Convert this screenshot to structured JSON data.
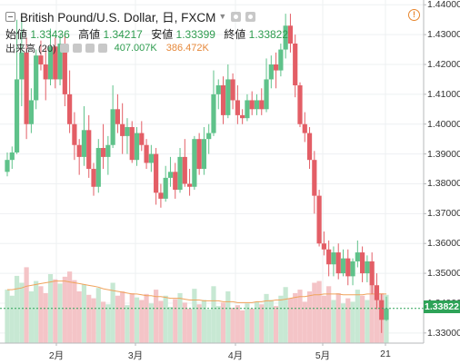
{
  "header": {
    "symbol_title": "British Pound/U.S. Dollar, 日, FXCM",
    "open_label": "始値",
    "open_value": "1.33436",
    "high_label": "高値",
    "high_value": "1.34217",
    "low_label": "安値",
    "low_value": "1.33399",
    "close_label": "終値",
    "close_value": "1.33822",
    "volume_study": "出来高 (20)",
    "volume_value": "407.007K",
    "volume_ma_value": "386.472K",
    "alert_glyph": "!"
  },
  "price_tag": "1.33822",
  "colors": {
    "up": "#5fc28a",
    "down": "#e35e66",
    "ma": "#f0a35c",
    "price_tag": "#2ea358"
  },
  "chart_data": {
    "type": "candlestick",
    "title": "British Pound/U.S. Dollar, 日, FXCM",
    "y_ticks": [
      "1.33000",
      "1.34000",
      "1.35000",
      "1.36000",
      "1.37000",
      "1.38000",
      "1.39000",
      "1.40000",
      "1.41000",
      "1.42000",
      "1.43000",
      "1.44000"
    ],
    "ylim": [
      1.3266,
      1.4416
    ],
    "x_ticks": [
      "2月",
      "3月",
      "4月",
      "5月",
      "21"
    ],
    "grid": true,
    "candles": [
      {
        "o": 1.384,
        "h": 1.3905,
        "l": 1.3825,
        "c": 1.388
      },
      {
        "o": 1.388,
        "h": 1.3925,
        "l": 1.385,
        "c": 1.3905
      },
      {
        "o": 1.3905,
        "h": 1.435,
        "l": 1.39,
        "c": 1.415
      },
      {
        "o": 1.415,
        "h": 1.436,
        "l": 1.406,
        "c": 1.424
      },
      {
        "o": 1.424,
        "h": 1.429,
        "l": 1.395,
        "c": 1.4
      },
      {
        "o": 1.4,
        "h": 1.412,
        "l": 1.397,
        "c": 1.408
      },
      {
        "o": 1.408,
        "h": 1.425,
        "l": 1.405,
        "c": 1.423
      },
      {
        "o": 1.423,
        "h": 1.428,
        "l": 1.418,
        "c": 1.42
      },
      {
        "o": 1.42,
        "h": 1.426,
        "l": 1.408,
        "c": 1.415
      },
      {
        "o": 1.415,
        "h": 1.432,
        "l": 1.413,
        "c": 1.426
      },
      {
        "o": 1.426,
        "h": 1.429,
        "l": 1.412,
        "c": 1.415
      },
      {
        "o": 1.415,
        "h": 1.43,
        "l": 1.413,
        "c": 1.427
      },
      {
        "o": 1.427,
        "h": 1.43,
        "l": 1.406,
        "c": 1.41
      },
      {
        "o": 1.41,
        "h": 1.418,
        "l": 1.397,
        "c": 1.4
      },
      {
        "o": 1.4,
        "h": 1.404,
        "l": 1.388,
        "c": 1.393
      },
      {
        "o": 1.393,
        "h": 1.395,
        "l": 1.383,
        "c": 1.389
      },
      {
        "o": 1.389,
        "h": 1.406,
        "l": 1.386,
        "c": 1.398
      },
      {
        "o": 1.398,
        "h": 1.403,
        "l": 1.382,
        "c": 1.385
      },
      {
        "o": 1.385,
        "h": 1.387,
        "l": 1.376,
        "c": 1.379
      },
      {
        "o": 1.379,
        "h": 1.395,
        "l": 1.377,
        "c": 1.392
      },
      {
        "o": 1.392,
        "h": 1.4,
        "l": 1.385,
        "c": 1.389
      },
      {
        "o": 1.389,
        "h": 1.396,
        "l": 1.383,
        "c": 1.393
      },
      {
        "o": 1.393,
        "h": 1.413,
        "l": 1.392,
        "c": 1.405
      },
      {
        "o": 1.405,
        "h": 1.41,
        "l": 1.397,
        "c": 1.4
      },
      {
        "o": 1.4,
        "h": 1.407,
        "l": 1.39,
        "c": 1.396
      },
      {
        "o": 1.396,
        "h": 1.402,
        "l": 1.39,
        "c": 1.399
      },
      {
        "o": 1.399,
        "h": 1.401,
        "l": 1.387,
        "c": 1.388
      },
      {
        "o": 1.388,
        "h": 1.399,
        "l": 1.386,
        "c": 1.397
      },
      {
        "o": 1.397,
        "h": 1.401,
        "l": 1.391,
        "c": 1.393
      },
      {
        "o": 1.393,
        "h": 1.395,
        "l": 1.385,
        "c": 1.387
      },
      {
        "o": 1.387,
        "h": 1.393,
        "l": 1.384,
        "c": 1.39
      },
      {
        "o": 1.39,
        "h": 1.392,
        "l": 1.373,
        "c": 1.377
      },
      {
        "o": 1.377,
        "h": 1.38,
        "l": 1.372,
        "c": 1.375
      },
      {
        "o": 1.375,
        "h": 1.386,
        "l": 1.374,
        "c": 1.382
      },
      {
        "o": 1.382,
        "h": 1.389,
        "l": 1.379,
        "c": 1.384
      },
      {
        "o": 1.384,
        "h": 1.387,
        "l": 1.375,
        "c": 1.378
      },
      {
        "o": 1.378,
        "h": 1.392,
        "l": 1.377,
        "c": 1.389
      },
      {
        "o": 1.389,
        "h": 1.395,
        "l": 1.379,
        "c": 1.38
      },
      {
        "o": 1.38,
        "h": 1.385,
        "l": 1.376,
        "c": 1.379
      },
      {
        "o": 1.379,
        "h": 1.396,
        "l": 1.378,
        "c": 1.395
      },
      {
        "o": 1.395,
        "h": 1.397,
        "l": 1.383,
        "c": 1.385
      },
      {
        "o": 1.385,
        "h": 1.399,
        "l": 1.383,
        "c": 1.395
      },
      {
        "o": 1.395,
        "h": 1.4,
        "l": 1.39,
        "c": 1.397
      },
      {
        "o": 1.397,
        "h": 1.418,
        "l": 1.396,
        "c": 1.41
      },
      {
        "o": 1.41,
        "h": 1.415,
        "l": 1.405,
        "c": 1.413
      },
      {
        "o": 1.413,
        "h": 1.416,
        "l": 1.4,
        "c": 1.403
      },
      {
        "o": 1.403,
        "h": 1.42,
        "l": 1.402,
        "c": 1.415
      },
      {
        "o": 1.415,
        "h": 1.417,
        "l": 1.405,
        "c": 1.408
      },
      {
        "o": 1.408,
        "h": 1.413,
        "l": 1.4,
        "c": 1.403
      },
      {
        "o": 1.403,
        "h": 1.405,
        "l": 1.4,
        "c": 1.402
      },
      {
        "o": 1.402,
        "h": 1.41,
        "l": 1.401,
        "c": 1.408
      },
      {
        "o": 1.408,
        "h": 1.411,
        "l": 1.403,
        "c": 1.405
      },
      {
        "o": 1.405,
        "h": 1.41,
        "l": 1.403,
        "c": 1.408
      },
      {
        "o": 1.408,
        "h": 1.412,
        "l": 1.403,
        "c": 1.405
      },
      {
        "o": 1.405,
        "h": 1.422,
        "l": 1.404,
        "c": 1.415
      },
      {
        "o": 1.415,
        "h": 1.423,
        "l": 1.412,
        "c": 1.42
      },
      {
        "o": 1.42,
        "h": 1.424,
        "l": 1.412,
        "c": 1.418
      },
      {
        "o": 1.418,
        "h": 1.427,
        "l": 1.416,
        "c": 1.425
      },
      {
        "o": 1.425,
        "h": 1.437,
        "l": 1.422,
        "c": 1.433
      },
      {
        "o": 1.433,
        "h": 1.437,
        "l": 1.424,
        "c": 1.427
      },
      {
        "o": 1.427,
        "h": 1.43,
        "l": 1.409,
        "c": 1.413
      },
      {
        "o": 1.413,
        "h": 1.414,
        "l": 1.399,
        "c": 1.4
      },
      {
        "o": 1.4,
        "h": 1.404,
        "l": 1.394,
        "c": 1.397
      },
      {
        "o": 1.397,
        "h": 1.399,
        "l": 1.385,
        "c": 1.388
      },
      {
        "o": 1.388,
        "h": 1.391,
        "l": 1.37,
        "c": 1.376
      },
      {
        "o": 1.376,
        "h": 1.378,
        "l": 1.359,
        "c": 1.36
      },
      {
        "o": 1.36,
        "h": 1.364,
        "l": 1.356,
        "c": 1.358
      },
      {
        "o": 1.358,
        "h": 1.361,
        "l": 1.349,
        "c": 1.353
      },
      {
        "o": 1.353,
        "h": 1.359,
        "l": 1.349,
        "c": 1.357
      },
      {
        "o": 1.357,
        "h": 1.36,
        "l": 1.348,
        "c": 1.35
      },
      {
        "o": 1.35,
        "h": 1.358,
        "l": 1.349,
        "c": 1.355
      },
      {
        "o": 1.355,
        "h": 1.358,
        "l": 1.346,
        "c": 1.349
      },
      {
        "o": 1.349,
        "h": 1.355,
        "l": 1.346,
        "c": 1.354
      },
      {
        "o": 1.354,
        "h": 1.361,
        "l": 1.352,
        "c": 1.357
      },
      {
        "o": 1.357,
        "h": 1.359,
        "l": 1.347,
        "c": 1.35
      },
      {
        "o": 1.35,
        "h": 1.356,
        "l": 1.347,
        "c": 1.354
      },
      {
        "o": 1.354,
        "h": 1.357,
        "l": 1.343,
        "c": 1.346
      },
      {
        "o": 1.346,
        "h": 1.35,
        "l": 1.338,
        "c": 1.341
      },
      {
        "o": 1.341,
        "h": 1.343,
        "l": 1.33,
        "c": 1.3344
      },
      {
        "o": 1.3344,
        "h": 1.3422,
        "l": 1.334,
        "c": 1.3382
      }
    ],
    "volumes": [
      {
        "v": 0.62,
        "up": true
      },
      {
        "v": 0.55,
        "up": true
      },
      {
        "v": 0.78,
        "up": true
      },
      {
        "v": 0.7,
        "up": true
      },
      {
        "v": 0.88,
        "up": false
      },
      {
        "v": 0.6,
        "up": true
      },
      {
        "v": 0.72,
        "up": true
      },
      {
        "v": 0.66,
        "up": false
      },
      {
        "v": 0.58,
        "up": false
      },
      {
        "v": 0.8,
        "up": true
      },
      {
        "v": 0.74,
        "up": false
      },
      {
        "v": 0.69,
        "up": true
      },
      {
        "v": 0.77,
        "up": false
      },
      {
        "v": 0.83,
        "up": false
      },
      {
        "v": 0.73,
        "up": false
      },
      {
        "v": 0.6,
        "up": false
      },
      {
        "v": 0.68,
        "up": true
      },
      {
        "v": 0.56,
        "up": false
      },
      {
        "v": 0.52,
        "up": false
      },
      {
        "v": 0.64,
        "up": true
      },
      {
        "v": 0.48,
        "up": false
      },
      {
        "v": 0.45,
        "up": true
      },
      {
        "v": 0.7,
        "up": true
      },
      {
        "v": 0.55,
        "up": false
      },
      {
        "v": 0.6,
        "up": false
      },
      {
        "v": 0.44,
        "up": true
      },
      {
        "v": 0.58,
        "up": false
      },
      {
        "v": 0.53,
        "up": true
      },
      {
        "v": 0.5,
        "up": false
      },
      {
        "v": 0.57,
        "up": false
      },
      {
        "v": 0.46,
        "up": true
      },
      {
        "v": 0.62,
        "up": false
      },
      {
        "v": 0.49,
        "up": false
      },
      {
        "v": 0.55,
        "up": true
      },
      {
        "v": 0.42,
        "up": true
      },
      {
        "v": 0.51,
        "up": false
      },
      {
        "v": 0.58,
        "up": true
      },
      {
        "v": 0.47,
        "up": false
      },
      {
        "v": 0.4,
        "up": false
      },
      {
        "v": 0.63,
        "up": true
      },
      {
        "v": 0.45,
        "up": false
      },
      {
        "v": 0.5,
        "up": true
      },
      {
        "v": 0.39,
        "up": true
      },
      {
        "v": 0.66,
        "up": true
      },
      {
        "v": 0.43,
        "up": true
      },
      {
        "v": 0.47,
        "up": false
      },
      {
        "v": 0.6,
        "up": true
      },
      {
        "v": 0.41,
        "up": false
      },
      {
        "v": 0.44,
        "up": false
      },
      {
        "v": 0.38,
        "up": false
      },
      {
        "v": 0.46,
        "up": true
      },
      {
        "v": 0.4,
        "up": false
      },
      {
        "v": 0.48,
        "up": true
      },
      {
        "v": 0.45,
        "up": false
      },
      {
        "v": 0.57,
        "up": true
      },
      {
        "v": 0.5,
        "up": true
      },
      {
        "v": 0.43,
        "up": false
      },
      {
        "v": 0.55,
        "up": true
      },
      {
        "v": 0.65,
        "up": true
      },
      {
        "v": 0.52,
        "up": false
      },
      {
        "v": 0.58,
        "up": false
      },
      {
        "v": 0.62,
        "up": false
      },
      {
        "v": 0.48,
        "up": false
      },
      {
        "v": 0.6,
        "up": false
      },
      {
        "v": 0.7,
        "up": false
      },
      {
        "v": 0.72,
        "up": false
      },
      {
        "v": 0.55,
        "up": false
      },
      {
        "v": 0.66,
        "up": false
      },
      {
        "v": 0.5,
        "up": true
      },
      {
        "v": 0.58,
        "up": false
      },
      {
        "v": 0.46,
        "up": true
      },
      {
        "v": 0.52,
        "up": false
      },
      {
        "v": 0.48,
        "up": true
      },
      {
        "v": 0.62,
        "up": true
      },
      {
        "v": 0.55,
        "up": false
      },
      {
        "v": 0.5,
        "up": true
      },
      {
        "v": 0.68,
        "up": false
      },
      {
        "v": 0.64,
        "up": false
      },
      {
        "v": 0.58,
        "up": false
      },
      {
        "v": 0.56,
        "up": true
      }
    ],
    "volume_ma": [
      0.62,
      0.62,
      0.63,
      0.64,
      0.66,
      0.67,
      0.68,
      0.69,
      0.7,
      0.71,
      0.72,
      0.72,
      0.72,
      0.71,
      0.7,
      0.69,
      0.68,
      0.67,
      0.66,
      0.65,
      0.63,
      0.62,
      0.61,
      0.6,
      0.59,
      0.58,
      0.57,
      0.57,
      0.56,
      0.55,
      0.55,
      0.54,
      0.54,
      0.53,
      0.52,
      0.52,
      0.52,
      0.51,
      0.5,
      0.5,
      0.5,
      0.49,
      0.49,
      0.49,
      0.49,
      0.48,
      0.48,
      0.48,
      0.47,
      0.47,
      0.47,
      0.47,
      0.48,
      0.48,
      0.49,
      0.49,
      0.5,
      0.5,
      0.51,
      0.52,
      0.53,
      0.54,
      0.54,
      0.55,
      0.56,
      0.56,
      0.57,
      0.57,
      0.57,
      0.57,
      0.56,
      0.56,
      0.56,
      0.56,
      0.56,
      0.57,
      0.57,
      0.57,
      0.57,
      0.57
    ]
  }
}
